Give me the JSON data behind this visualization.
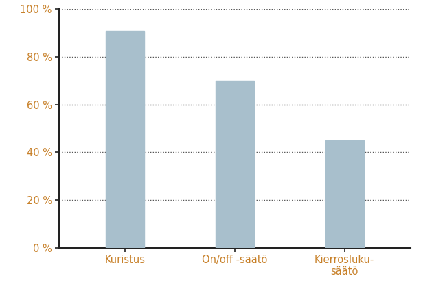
{
  "categories": [
    "Kuristus",
    "On/off -säätö",
    "Kierrosluku-\nsäätö"
  ],
  "values": [
    91,
    70,
    45
  ],
  "bar_color": "#a8bfcc",
  "bar_width": 0.35,
  "ylim": [
    0,
    100
  ],
  "yticks": [
    0,
    20,
    40,
    60,
    80,
    100
  ],
  "ytick_labels": [
    "0 %",
    "20 %",
    "40 %",
    "60 %",
    "80 %",
    "100 %"
  ],
  "xlabel_color": "#c8812a",
  "ylabel_color": "#c8812a",
  "axis_color": "#222222",
  "grid_color": "#555555",
  "background_color": "#ffffff",
  "tick_label_fontsize": 10.5,
  "xlabel_fontsize": 10.5
}
